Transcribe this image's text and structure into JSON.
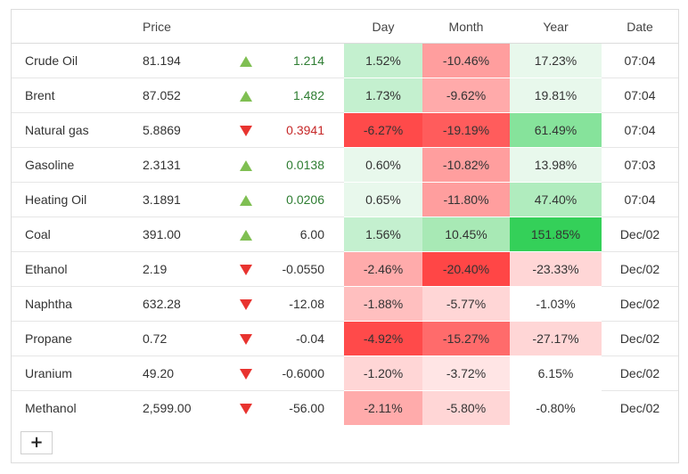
{
  "headers": {
    "name": "",
    "price": "Price",
    "arrow": "",
    "change": "",
    "day": "Day",
    "month": "Month",
    "year": "Year",
    "date": "Date"
  },
  "rows": [
    {
      "name": "Crude Oil",
      "price": "81.194",
      "dir": "up",
      "change": "1.214",
      "change_color": "pos",
      "day": "1.52%",
      "day_bg": "#c4f0cf",
      "month": "-10.46%",
      "month_bg": "#ff9e9e",
      "year": "17.23%",
      "year_bg": "#e8f8ec",
      "date": "07:04"
    },
    {
      "name": "Brent",
      "price": "87.052",
      "dir": "up",
      "change": "1.482",
      "change_color": "pos",
      "day": "1.73%",
      "day_bg": "#c4f0cf",
      "month": "-9.62%",
      "month_bg": "#ffaaaa",
      "year": "19.81%",
      "year_bg": "#e8f8ec",
      "date": "07:04"
    },
    {
      "name": "Natural gas",
      "price": "5.8869",
      "dir": "down",
      "change": "0.3941",
      "change_color": "neg",
      "day": "-6.27%",
      "day_bg": "#ff4a4a",
      "month": "-19.19%",
      "month_bg": "#ff5c5c",
      "year": "61.49%",
      "year_bg": "#86e39b",
      "date": "07:04"
    },
    {
      "name": "Gasoline",
      "price": "2.3131",
      "dir": "up",
      "change": "0.0138",
      "change_color": "pos",
      "day": "0.60%",
      "day_bg": "#e8f8ec",
      "month": "-10.82%",
      "month_bg": "#ff9e9e",
      "year": "13.98%",
      "year_bg": "#e8f8ec",
      "date": "07:03"
    },
    {
      "name": "Heating Oil",
      "price": "3.1891",
      "dir": "up",
      "change": "0.0206",
      "change_color": "pos",
      "day": "0.65%",
      "day_bg": "#e8f8ec",
      "month": "-11.80%",
      "month_bg": "#ff9e9e",
      "year": "47.40%",
      "year_bg": "#b0ecbe",
      "date": "07:04"
    },
    {
      "name": "Coal",
      "price": "391.00",
      "dir": "up",
      "change": "6.00",
      "change_color": "neutral",
      "day": "1.56%",
      "day_bg": "#c4f0cf",
      "month": "10.45%",
      "month_bg": "#a8e9b5",
      "year": "151.85%",
      "year_bg": "#34d059",
      "date": "Dec/02"
    },
    {
      "name": "Ethanol",
      "price": "2.19",
      "dir": "down",
      "change": "-0.0550",
      "change_color": "neutral",
      "day": "-2.46%",
      "day_bg": "#ffabab",
      "month": "-20.40%",
      "month_bg": "#ff4646",
      "year": "-23.33%",
      "year_bg": "#ffd6d6",
      "date": "Dec/02"
    },
    {
      "name": "Naphtha",
      "price": "632.28",
      "dir": "down",
      "change": "-12.08",
      "change_color": "neutral",
      "day": "-1.88%",
      "day_bg": "#ffbfbf",
      "month": "-5.77%",
      "month_bg": "#ffd6d6",
      "year": "-1.03%",
      "year_bg": "#ffffff",
      "date": "Dec/02"
    },
    {
      "name": "Propane",
      "price": "0.72",
      "dir": "down",
      "change": "-0.04",
      "change_color": "neutral",
      "day": "-4.92%",
      "day_bg": "#ff4a4a",
      "month": "-15.27%",
      "month_bg": "#ff6b6b",
      "year": "-27.17%",
      "year_bg": "#ffd6d6",
      "date": "Dec/02"
    },
    {
      "name": "Uranium",
      "price": "49.20",
      "dir": "down",
      "change": "-0.6000",
      "change_color": "neutral",
      "day": "-1.20%",
      "day_bg": "#ffd6d6",
      "month": "-3.72%",
      "month_bg": "#ffe5e5",
      "year": "6.15%",
      "year_bg": "#ffffff",
      "date": "Dec/02"
    },
    {
      "name": "Methanol",
      "price": "2,599.00",
      "dir": "down",
      "change": "-56.00",
      "change_color": "neutral",
      "day": "-2.11%",
      "day_bg": "#ffabab",
      "month": "-5.80%",
      "month_bg": "#ffd6d6",
      "year": "-0.80%",
      "year_bg": "#ffffff",
      "date": "Dec/02"
    }
  ],
  "add_button": {
    "label": "+"
  }
}
